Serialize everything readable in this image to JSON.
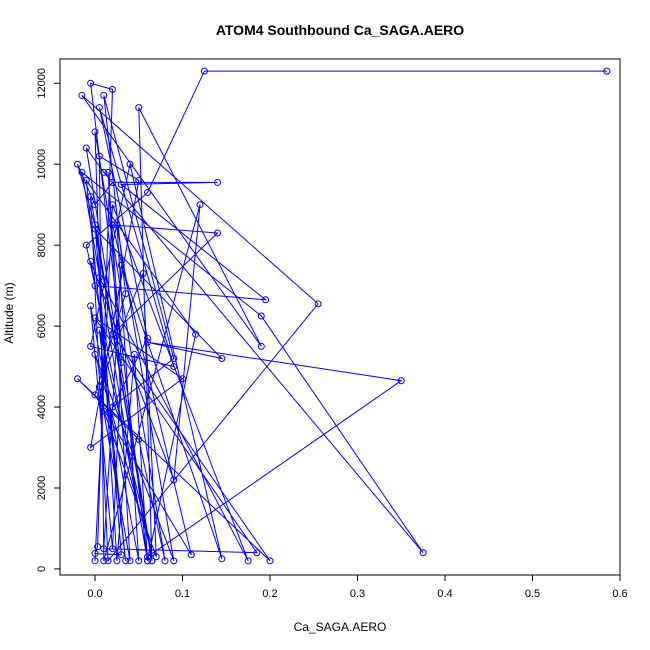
{
  "chart_data": {
    "type": "line",
    "title": "ATOM4 Southbound Ca_SAGA.AERO",
    "xlabel": "Ca_SAGA.AERO",
    "ylabel": "Altitude (m)",
    "xlim": [
      -0.04,
      0.6
    ],
    "ylim": [
      -150,
      12600
    ],
    "xticks": [
      0.0,
      0.1,
      0.2,
      0.3,
      0.4,
      0.5,
      0.6
    ],
    "xtick_labels": [
      "0.0",
      "0.1",
      "0.2",
      "0.3",
      "0.4",
      "0.5",
      "0.6"
    ],
    "yticks": [
      0,
      2000,
      4000,
      6000,
      8000,
      10000,
      12000
    ],
    "ytick_labels": [
      "0",
      "2000",
      "4000",
      "6000",
      "8000",
      "10000",
      "12000"
    ],
    "grid": false,
    "legend": "none",
    "series": [
      {
        "color": "#0000ff",
        "marker": "open-circle",
        "line": true,
        "points": [
          [
            0.585,
            12300
          ],
          [
            0.125,
            12300
          ],
          [
            0.06,
            9300
          ],
          [
            -0.01,
            8000
          ],
          [
            0.0,
            7000
          ],
          [
            0.195,
            6650
          ],
          [
            0.03,
            9500
          ],
          [
            0.14,
            9550
          ],
          [
            0.02,
            9550
          ],
          [
            0.0,
            9000
          ],
          [
            -0.02,
            10000
          ],
          [
            0.0,
            8500
          ],
          [
            0.03,
            350
          ],
          [
            0.0,
            380
          ],
          [
            0.003,
            550
          ],
          [
            0.02,
            11850
          ],
          [
            -0.005,
            12000
          ],
          [
            0.06,
            200
          ],
          [
            -0.015,
            9800
          ],
          [
            0.19,
            6250
          ],
          [
            0.375,
            400
          ],
          [
            0.01,
            9800
          ],
          [
            -0.01,
            10400
          ],
          [
            0.065,
            200
          ],
          [
            0.05,
            11400
          ],
          [
            0.19,
            5500
          ],
          [
            -0.015,
            11700
          ],
          [
            0.255,
            6550
          ],
          [
            0.015,
            200
          ],
          [
            -0.005,
            9200
          ],
          [
            0.065,
            200
          ],
          [
            0.0,
            8400
          ],
          [
            0.145,
            5200
          ],
          [
            0.06,
            5600
          ],
          [
            0.35,
            4650
          ],
          [
            0.06,
            300
          ],
          [
            -0.005,
            7600
          ],
          [
            0.09,
            2200
          ],
          [
            0.12,
            9000
          ],
          [
            0.01,
            200
          ],
          [
            0.005,
            10200
          ],
          [
            0.05,
            9600
          ],
          [
            -0.005,
            3000
          ],
          [
            0.1,
            4700
          ],
          [
            0.0,
            6200
          ],
          [
            0.185,
            400
          ],
          [
            0.01,
            500
          ],
          [
            0.03,
            7500
          ],
          [
            0.145,
            250
          ],
          [
            0.04,
            10000
          ],
          [
            -0.005,
            5500
          ],
          [
            0.09,
            5000
          ],
          [
            0.005,
            11400
          ],
          [
            0.06,
            5700
          ],
          [
            0.02,
            4000
          ],
          [
            0.09,
            5200
          ],
          [
            0.01,
            11700
          ],
          [
            0.035,
            6800
          ],
          [
            0.0,
            4300
          ],
          [
            0.11,
            350
          ],
          [
            0.02,
            8500
          ],
          [
            0.14,
            8300
          ],
          [
            0.02,
            5800
          ],
          [
            0.2,
            200
          ],
          [
            -0.02,
            4700
          ],
          [
            0.05,
            3200
          ],
          [
            0.08,
            200
          ],
          [
            0.0,
            10800
          ],
          [
            0.01,
            3900
          ],
          [
            0.07,
            300
          ],
          [
            0.055,
            7300
          ],
          [
            0.005,
            4500
          ],
          [
            0.04,
            200
          ],
          [
            0.015,
            9800
          ],
          [
            0.03,
            5100
          ],
          [
            0.02,
            500
          ],
          [
            -0.005,
            6500
          ],
          [
            0.05,
            200
          ],
          [
            0.025,
            8500
          ],
          [
            0.09,
            200
          ],
          [
            0.0,
            5300
          ],
          [
            0.065,
            400
          ],
          [
            0.005,
            5900
          ],
          [
            0.035,
            200
          ],
          [
            -0.01,
            9600
          ],
          [
            0.115,
            5800
          ],
          [
            0.06,
            200
          ],
          [
            0.045,
            5300
          ],
          [
            0.025,
            200
          ],
          [
            0.005,
            7200
          ],
          [
            0.175,
            200
          ],
          [
            0.02,
            9000
          ],
          [
            0.0,
            200
          ]
        ]
      }
    ]
  }
}
